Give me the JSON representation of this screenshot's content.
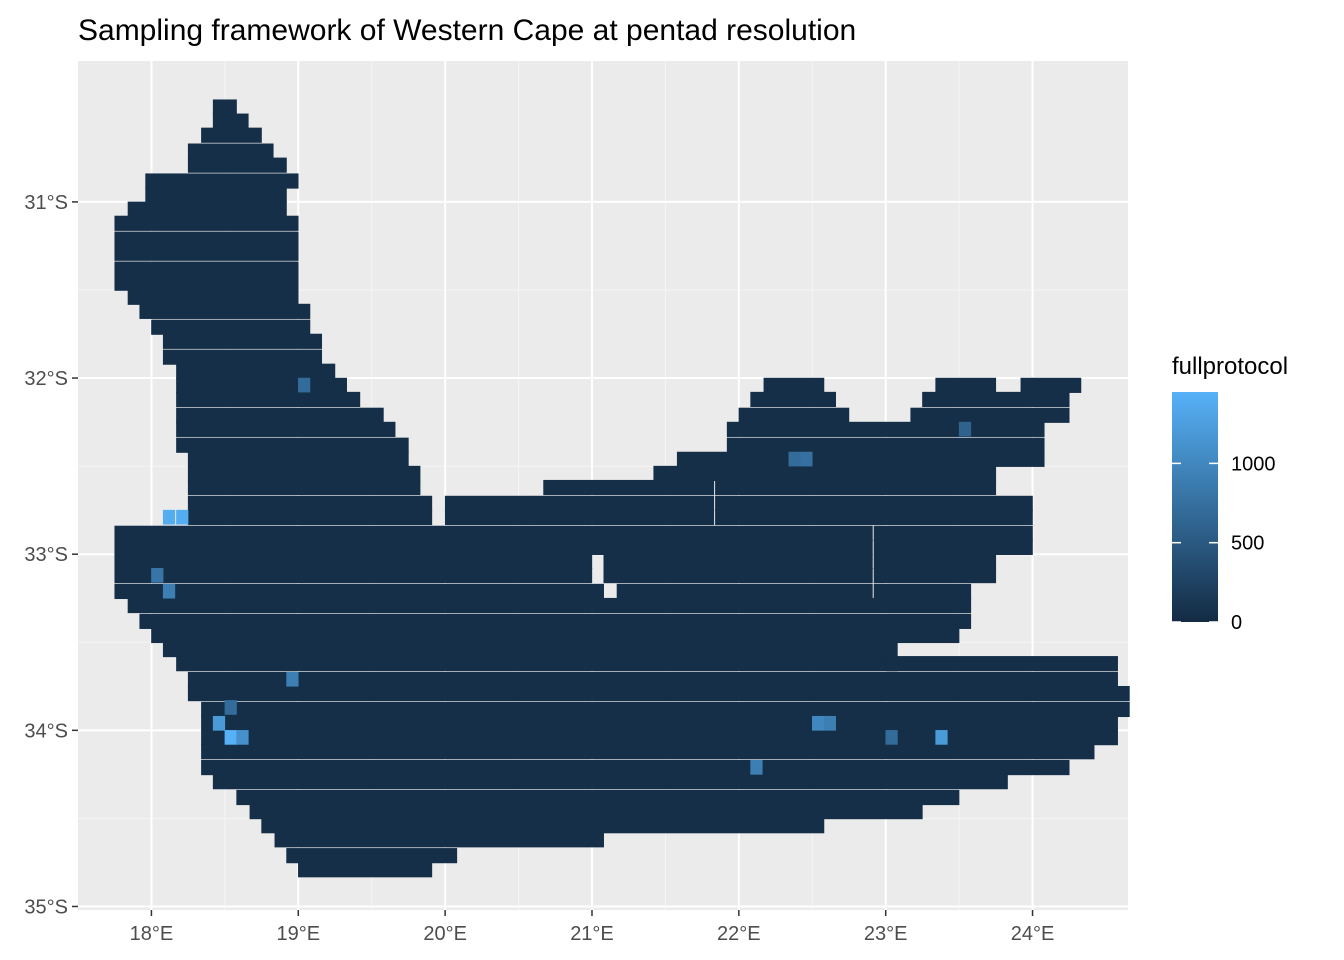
{
  "chart_data": {
    "type": "heatmap",
    "title": "Sampling framework of Western Cape at pentad resolution",
    "xlabel": "",
    "ylabel": "",
    "x_ticks": [
      {
        "value": 18,
        "label": "18°E"
      },
      {
        "value": 19,
        "label": "19°E"
      },
      {
        "value": 20,
        "label": "20°E"
      },
      {
        "value": 21,
        "label": "21°E"
      },
      {
        "value": 22,
        "label": "22°E"
      },
      {
        "value": 23,
        "label": "23°E"
      },
      {
        "value": 24,
        "label": "24°E"
      }
    ],
    "y_ticks": [
      {
        "value": -31,
        "label": "31°S"
      },
      {
        "value": -32,
        "label": "32°S"
      },
      {
        "value": -33,
        "label": "33°S"
      },
      {
        "value": -34,
        "label": "34°S"
      },
      {
        "value": -35,
        "label": "35°S"
      }
    ],
    "xlim": [
      17.5,
      24.65
    ],
    "ylim": [
      -35.02,
      -30.2
    ],
    "grid": true,
    "cell_size_deg": 0.0833,
    "legend": {
      "title": "fullprotocol",
      "position": "right",
      "min": 0,
      "max": 1450,
      "low_color": "#132B43",
      "high_color": "#56B1F7",
      "ticks": [
        {
          "value": 0,
          "label": "0"
        },
        {
          "value": 500,
          "label": "500"
        },
        {
          "value": 1000,
          "label": "1000"
        }
      ]
    },
    "outline_rows": [
      {
        "lat": -30.46,
        "spans": [
          [
            18.46,
            18.54
          ]
        ]
      },
      {
        "lat": -30.54,
        "spans": [
          [
            18.46,
            18.62
          ]
        ]
      },
      {
        "lat": -30.62,
        "spans": [
          [
            18.38,
            18.71
          ]
        ]
      },
      {
        "lat": -30.71,
        "spans": [
          [
            18.29,
            18.79
          ]
        ]
      },
      {
        "lat": -30.79,
        "spans": [
          [
            18.29,
            18.88
          ]
        ]
      },
      {
        "lat": -30.88,
        "spans": [
          [
            18.0,
            18.96
          ]
        ]
      },
      {
        "lat": -30.96,
        "spans": [
          [
            18.0,
            18.88
          ]
        ]
      },
      {
        "lat": -31.04,
        "spans": [
          [
            17.88,
            18.88
          ]
        ]
      },
      {
        "lat": -31.12,
        "spans": [
          [
            17.79,
            18.96
          ]
        ]
      },
      {
        "lat": -31.21,
        "spans": [
          [
            17.79,
            18.96
          ]
        ]
      },
      {
        "lat": -31.29,
        "spans": [
          [
            17.79,
            18.96
          ]
        ]
      },
      {
        "lat": -31.38,
        "spans": [
          [
            17.79,
            18.96
          ]
        ]
      },
      {
        "lat": -31.46,
        "spans": [
          [
            17.79,
            18.96
          ]
        ]
      },
      {
        "lat": -31.54,
        "spans": [
          [
            17.88,
            18.96
          ]
        ]
      },
      {
        "lat": -31.62,
        "spans": [
          [
            17.96,
            19.04
          ]
        ]
      },
      {
        "lat": -31.71,
        "spans": [
          [
            18.04,
            19.04
          ]
        ]
      },
      {
        "lat": -31.79,
        "spans": [
          [
            18.12,
            19.12
          ]
        ]
      },
      {
        "lat": -31.88,
        "spans": [
          [
            18.12,
            19.12
          ]
        ]
      },
      {
        "lat": -31.96,
        "spans": [
          [
            18.21,
            19.21
          ]
        ]
      },
      {
        "lat": -32.04,
        "spans": [
          [
            18.21,
            19.29
          ],
          [
            22.21,
            22.54
          ],
          [
            23.38,
            23.71
          ],
          [
            23.96,
            24.29
          ]
        ]
      },
      {
        "lat": -32.12,
        "spans": [
          [
            18.21,
            19.38
          ],
          [
            22.12,
            22.62
          ],
          [
            23.29,
            24.21
          ]
        ]
      },
      {
        "lat": -32.21,
        "spans": [
          [
            18.21,
            19.54
          ],
          [
            22.04,
            22.71
          ],
          [
            23.21,
            24.21
          ]
        ]
      },
      {
        "lat": -32.29,
        "spans": [
          [
            18.21,
            19.62
          ],
          [
            21.96,
            24.04
          ]
        ]
      },
      {
        "lat": -32.38,
        "spans": [
          [
            18.21,
            19.71
          ],
          [
            21.96,
            24.04
          ]
        ]
      },
      {
        "lat": -32.46,
        "spans": [
          [
            18.29,
            19.71
          ],
          [
            21.62,
            24.04
          ]
        ]
      },
      {
        "lat": -32.54,
        "spans": [
          [
            18.29,
            19.79
          ],
          [
            21.46,
            23.71
          ]
        ]
      },
      {
        "lat": -32.62,
        "spans": [
          [
            18.29,
            19.79
          ],
          [
            20.71,
            21.79
          ],
          [
            21.88,
            23.71
          ]
        ]
      },
      {
        "lat": -32.71,
        "spans": [
          [
            18.29,
            19.87
          ],
          [
            20.04,
            20.54
          ],
          [
            20.62,
            21.79
          ],
          [
            21.88,
            23.96
          ]
        ]
      },
      {
        "lat": -32.79,
        "spans": [
          [
            18.29,
            19.87
          ],
          [
            20.04,
            20.54
          ],
          [
            20.62,
            21.79
          ],
          [
            21.88,
            23.96
          ]
        ]
      },
      {
        "lat": -32.88,
        "spans": [
          [
            17.79,
            20.54
          ],
          [
            20.62,
            22.87
          ],
          [
            22.96,
            23.96
          ]
        ]
      },
      {
        "lat": -32.96,
        "spans": [
          [
            17.79,
            20.54
          ],
          [
            20.62,
            22.87
          ],
          [
            22.96,
            23.96
          ]
        ]
      },
      {
        "lat": -33.04,
        "spans": [
          [
            17.79,
            20.96
          ],
          [
            21.12,
            22.87
          ],
          [
            22.96,
            23.71
          ]
        ]
      },
      {
        "lat": -33.12,
        "spans": [
          [
            17.79,
            20.96
          ],
          [
            21.12,
            22.87
          ],
          [
            22.96,
            23.71
          ]
        ]
      },
      {
        "lat": -33.21,
        "spans": [
          [
            17.79,
            21.04
          ],
          [
            21.21,
            22.87
          ],
          [
            22.96,
            23.54
          ]
        ]
      },
      {
        "lat": -33.29,
        "spans": [
          [
            17.88,
            22.96
          ],
          [
            23.04,
            23.54
          ]
        ]
      },
      {
        "lat": -33.38,
        "spans": [
          [
            17.96,
            23.54
          ]
        ]
      },
      {
        "lat": -33.46,
        "spans": [
          [
            18.04,
            23.46
          ]
        ]
      },
      {
        "lat": -33.54,
        "spans": [
          [
            18.12,
            23.04
          ]
        ]
      },
      {
        "lat": -33.62,
        "spans": [
          [
            18.21,
            23.04
          ],
          [
            23.04,
            24.54
          ]
        ]
      },
      {
        "lat": -33.71,
        "spans": [
          [
            18.29,
            24.54
          ]
        ]
      },
      {
        "lat": -33.79,
        "spans": [
          [
            18.29,
            24.62
          ]
        ]
      },
      {
        "lat": -33.88,
        "spans": [
          [
            18.38,
            24.62
          ]
        ]
      },
      {
        "lat": -33.96,
        "spans": [
          [
            18.38,
            24.54
          ]
        ]
      },
      {
        "lat": -34.04,
        "spans": [
          [
            18.38,
            24.54
          ]
        ]
      },
      {
        "lat": -34.12,
        "spans": [
          [
            18.38,
            24.38
          ]
        ]
      },
      {
        "lat": -34.21,
        "spans": [
          [
            18.38,
            24.21
          ]
        ]
      },
      {
        "lat": -34.29,
        "spans": [
          [
            18.46,
            23.79
          ]
        ]
      },
      {
        "lat": -34.38,
        "spans": [
          [
            18.62,
            23.46
          ]
        ]
      },
      {
        "lat": -34.46,
        "spans": [
          [
            18.71,
            23.21
          ]
        ]
      },
      {
        "lat": -34.54,
        "spans": [
          [
            18.79,
            22.54
          ]
        ]
      },
      {
        "lat": -34.62,
        "spans": [
          [
            18.88,
            21.04
          ]
        ]
      },
      {
        "lat": -34.71,
        "spans": [
          [
            18.96,
            20.04
          ]
        ]
      },
      {
        "lat": -34.79,
        "spans": [
          [
            19.04,
            19.87
          ]
        ]
      }
    ],
    "highlight_cells": [
      {
        "lon": 18.12,
        "lat": -32.79,
        "value": 1400
      },
      {
        "lon": 18.21,
        "lat": -32.79,
        "value": 1400
      },
      {
        "lon": 18.04,
        "lat": -33.12,
        "value": 800
      },
      {
        "lon": 18.12,
        "lat": -33.21,
        "value": 900
      },
      {
        "lon": 18.46,
        "lat": -33.96,
        "value": 1200
      },
      {
        "lon": 18.54,
        "lat": -34.04,
        "value": 1450
      },
      {
        "lon": 18.62,
        "lat": -34.04,
        "value": 1100
      },
      {
        "lon": 18.54,
        "lat": -33.87,
        "value": 700
      },
      {
        "lon": 18.96,
        "lat": -33.71,
        "value": 900
      },
      {
        "lon": 19.04,
        "lat": -32.04,
        "value": 700
      },
      {
        "lon": 22.12,
        "lat": -34.21,
        "value": 900
      },
      {
        "lon": 22.54,
        "lat": -33.96,
        "value": 1000
      },
      {
        "lon": 22.62,
        "lat": -33.96,
        "value": 900
      },
      {
        "lon": 23.38,
        "lat": -34.04,
        "value": 1200
      },
      {
        "lon": 23.04,
        "lat": -34.04,
        "value": 700
      },
      {
        "lon": 22.38,
        "lat": -32.46,
        "value": 700
      },
      {
        "lon": 22.46,
        "lat": -32.46,
        "value": 750
      },
      {
        "lon": 23.54,
        "lat": -32.29,
        "value": 600
      }
    ]
  }
}
